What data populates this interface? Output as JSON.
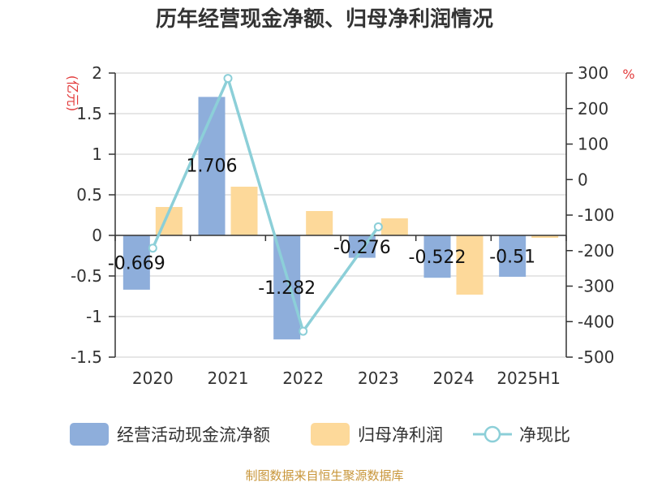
{
  "chart_data": {
    "type": "bar",
    "title": "历年经营现金净额、归母净利润情况",
    "categories": [
      "2020",
      "2021",
      "2022",
      "2023",
      "2024",
      "2025H1"
    ],
    "left_axis": {
      "unit": "(亿元)",
      "ylim": [
        -1.5,
        2
      ],
      "ticks": [
        "2",
        "1.5",
        "1",
        "0.5",
        "0",
        "-0.5",
        "-1",
        "-1.5"
      ]
    },
    "right_axis": {
      "unit": "%",
      "ylim": [
        -500,
        300
      ],
      "ticks": [
        "300",
        "200",
        "100",
        "0",
        "-100",
        "-200",
        "-300",
        "-400",
        "-500"
      ]
    },
    "grid": true,
    "legend_position": "bottom",
    "series": [
      {
        "name": "经营活动现金流净额",
        "type": "bar",
        "axis": "left",
        "color": "#8eaedb",
        "values": [
          -0.669,
          1.706,
          -1.282,
          -0.276,
          -0.522,
          -0.51
        ],
        "data_labels": [
          "-0.669",
          "1.706",
          "-1.282",
          "-0.276",
          "-0.522",
          "-0.51"
        ]
      },
      {
        "name": "归母净利润",
        "type": "bar",
        "axis": "left",
        "color": "#fdd99a",
        "values": [
          0.35,
          0.6,
          0.3,
          0.21,
          -0.73,
          -0.03
        ]
      },
      {
        "name": "净现比",
        "type": "line",
        "axis": "right",
        "color": "#8ccfd8",
        "values": [
          -193,
          285,
          -427,
          -133,
          null,
          null
        ]
      }
    ]
  },
  "footer": {
    "source": "制图数据来自恒生聚源数据库"
  }
}
